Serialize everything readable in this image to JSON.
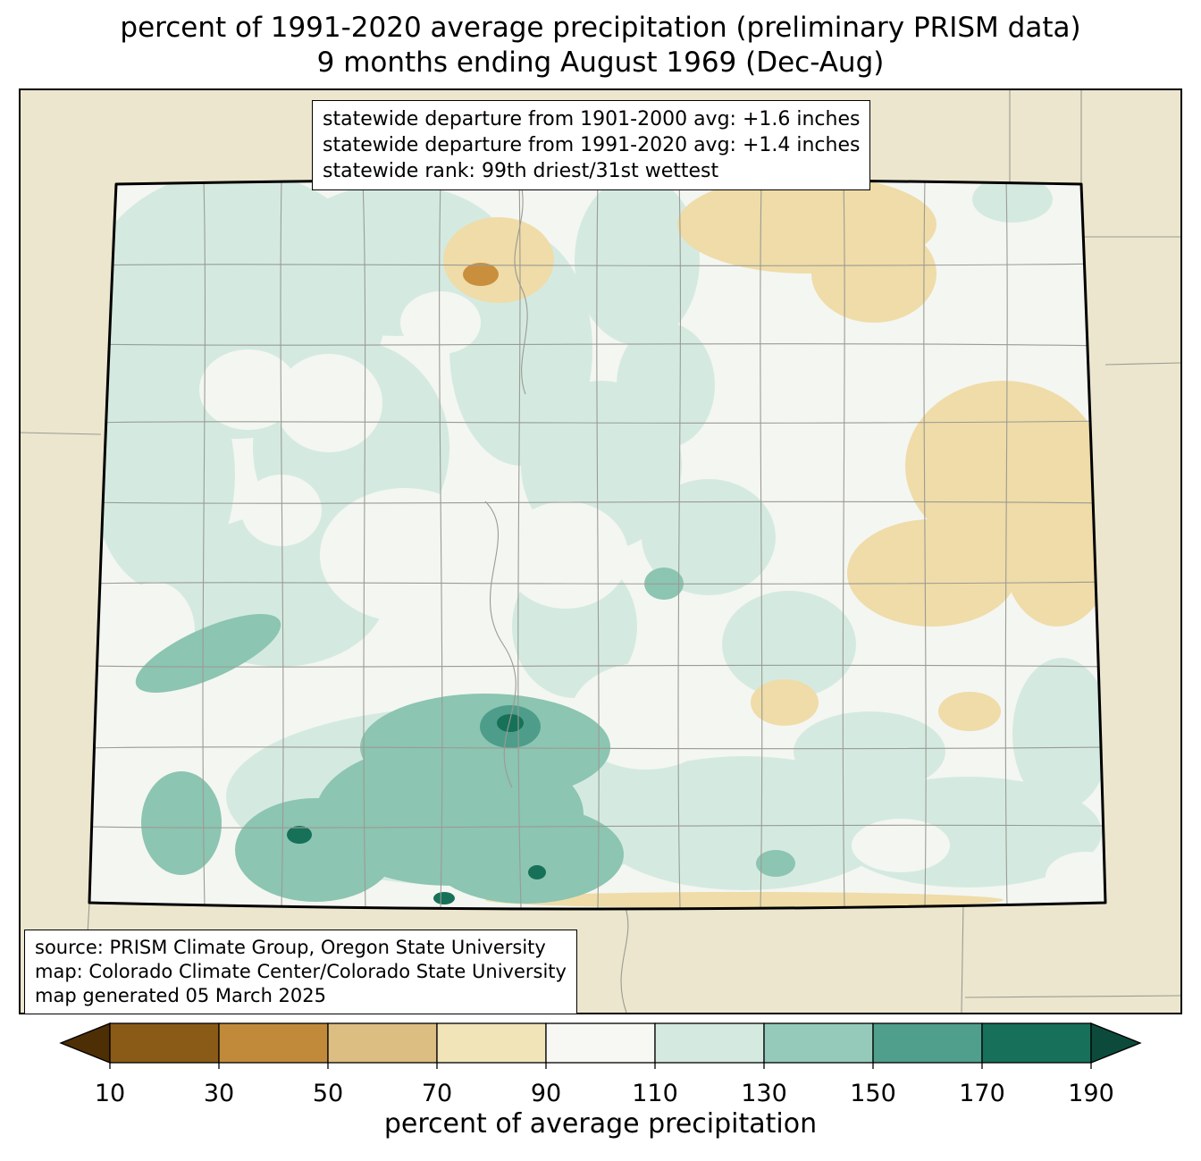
{
  "title": {
    "line1": "percent of 1991-2020 average precipitation (preliminary PRISM data)",
    "line2": "9 months ending August 1969 (Dec-Aug)"
  },
  "stats_box": {
    "lines": [
      "statewide departure from 1901-2000 avg: +1.6 inches",
      "statewide departure from 1991-2020 avg: +1.4 inches",
      "statewide rank: 99th driest/31st wettest"
    ]
  },
  "source_box": {
    "lines": [
      "source: PRISM Climate Group, Oregon State University",
      "map: Colorado Climate Center/Colorado State University",
      "map generated 05 March 2025"
    ]
  },
  "colorbar": {
    "label": "percent of average precipitation",
    "ticks": [
      "10",
      "30",
      "50",
      "70",
      "90",
      "110",
      "130",
      "150",
      "170",
      "190"
    ],
    "colors": [
      "#8a5a17",
      "#c18a3b",
      "#dcbd82",
      "#f0e4b8",
      "#f7f7f3",
      "#d4eae1",
      "#95cabb",
      "#4f9f8c",
      "#177059"
    ],
    "arrow_left": "#4d2e05",
    "arrow_right": "#0c4b3b"
  },
  "map": {
    "region": "Colorado",
    "colors": {
      "beige": "#ebe6cd",
      "state": "#f4f6f2",
      "teal-light": "#d4eae1",
      "teal-mid": "#8cc5b2",
      "teal-deep": "#4d9d8a",
      "teal-dark": "#177158",
      "tan": "#efdca8",
      "orange": "#c98f3d",
      "county": "#9b9b93"
    }
  }
}
